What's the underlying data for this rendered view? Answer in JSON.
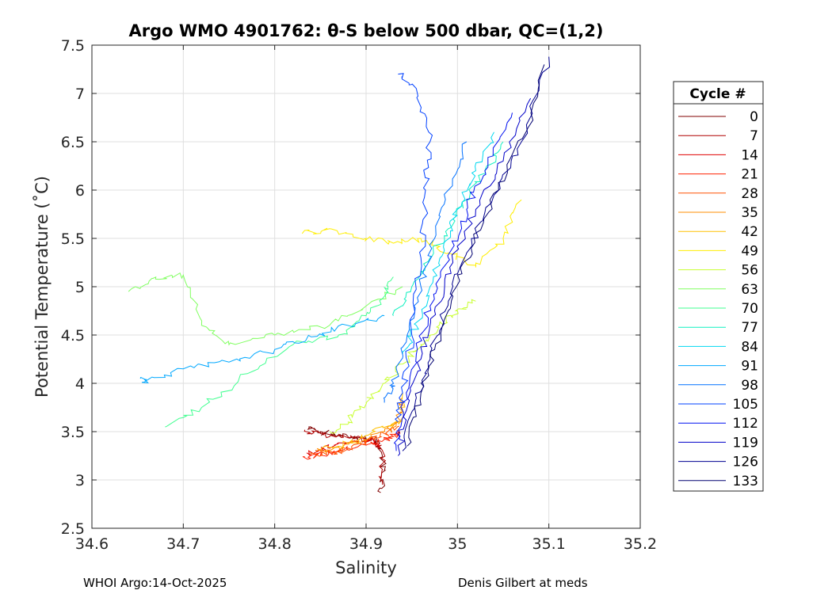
{
  "chart_data": {
    "type": "line",
    "title": "Argo WMO 4901762: θ-S below 500 dbar,  QC=(1,2)",
    "xlabel": "Salinity",
    "ylabel": "Potential Temperature (˚C)",
    "xlim": [
      34.6,
      35.2
    ],
    "ylim": [
      2.5,
      7.5
    ],
    "xticks": [
      34.6,
      34.7,
      34.8,
      34.9,
      35,
      35.1,
      35.2
    ],
    "xtick_labels": [
      "34.6",
      "34.7",
      "34.8",
      "34.9",
      "35",
      "35.1",
      "35.2"
    ],
    "yticks": [
      2.5,
      3,
      3.5,
      4,
      4.5,
      5,
      5.5,
      6,
      6.5,
      7,
      7.5
    ],
    "ytick_labels": [
      "2.5",
      "3",
      "3.5",
      "4",
      "4.5",
      "5",
      "5.5",
      "6",
      "6.5",
      "7",
      "7.5"
    ],
    "grid": true,
    "legend": {
      "title": "Cycle #",
      "placement": "right outside",
      "entries": [
        {
          "label": "0",
          "color": "#800000"
        },
        {
          "label": "7",
          "color": "#b00000"
        },
        {
          "label": "14",
          "color": "#e00000"
        },
        {
          "label": "21",
          "color": "#ff2000"
        },
        {
          "label": "28",
          "color": "#ff5000"
        },
        {
          "label": "35",
          "color": "#ff8c00"
        },
        {
          "label": "42",
          "color": "#ffc000"
        },
        {
          "label": "49",
          "color": "#ffee00"
        },
        {
          "label": "56",
          "color": "#c8ff30"
        },
        {
          "label": "63",
          "color": "#80ff60"
        },
        {
          "label": "70",
          "color": "#40ff90"
        },
        {
          "label": "77",
          "color": "#10f0c0"
        },
        {
          "label": "84",
          "color": "#00d8f0"
        },
        {
          "label": "91",
          "color": "#00a8ff"
        },
        {
          "label": "98",
          "color": "#0070ff"
        },
        {
          "label": "105",
          "color": "#0040ff"
        },
        {
          "label": "112",
          "color": "#0010f0"
        },
        {
          "label": "119",
          "color": "#0000c8"
        },
        {
          "label": "126",
          "color": "#000090"
        },
        {
          "label": "133",
          "color": "#000070"
        }
      ]
    },
    "series": [
      {
        "name": "0",
        "color": "#800000",
        "x": [
          34.837,
          34.85,
          34.87,
          34.89,
          34.905,
          34.915,
          34.92,
          34.916
        ],
        "y": [
          3.55,
          3.5,
          3.46,
          3.44,
          3.43,
          3.38,
          3.1,
          2.87
        ]
      },
      {
        "name": "7",
        "color": "#b00000",
        "x": [
          34.833,
          34.85,
          34.875,
          34.895,
          34.91,
          34.918,
          34.918
        ],
        "y": [
          3.52,
          3.48,
          3.44,
          3.42,
          3.4,
          3.3,
          2.95
        ]
      },
      {
        "name": "14",
        "color": "#e00000",
        "x": [
          34.835,
          34.848,
          34.865,
          34.89,
          34.905,
          34.915
        ],
        "y": [
          3.28,
          3.3,
          3.36,
          3.4,
          3.42,
          3.35
        ]
      },
      {
        "name": "21",
        "color": "#ff2000",
        "x": [
          34.833,
          34.85,
          34.87,
          34.9,
          34.92,
          34.93,
          34.935
        ],
        "y": [
          3.24,
          3.26,
          3.3,
          3.36,
          3.42,
          3.45,
          3.5
        ]
      },
      {
        "name": "28",
        "color": "#ff5000",
        "x": [
          34.84,
          34.86,
          34.88,
          34.9,
          34.92,
          34.935
        ],
        "y": [
          3.26,
          3.28,
          3.32,
          3.4,
          3.48,
          3.55
        ]
      },
      {
        "name": "35",
        "color": "#ff8c00",
        "x": [
          34.845,
          34.87,
          34.895,
          34.92,
          34.935,
          34.94
        ],
        "y": [
          3.3,
          3.34,
          3.4,
          3.5,
          3.6,
          3.85
        ]
      },
      {
        "name": "42",
        "color": "#ffc000",
        "x": [
          34.85,
          34.88,
          34.9,
          34.925,
          34.938,
          34.94
        ],
        "y": [
          3.32,
          3.38,
          3.46,
          3.56,
          3.62,
          3.9
        ]
      },
      {
        "name": "49",
        "color": "#ffee00",
        "x": [
          34.83,
          34.86,
          34.9,
          34.93,
          34.96,
          34.99,
          35.02,
          35.05,
          35.07
        ],
        "y": [
          5.55,
          5.6,
          5.5,
          5.45,
          5.5,
          5.35,
          5.2,
          5.5,
          5.9
        ]
      },
      {
        "name": "56",
        "color": "#c8ff30",
        "x": [
          34.86,
          34.88,
          34.9,
          34.92,
          34.94,
          34.96,
          34.98,
          35.0,
          35.02
        ],
        "y": [
          3.5,
          3.6,
          3.8,
          4.0,
          4.2,
          4.4,
          4.6,
          4.75,
          4.85
        ]
      },
      {
        "name": "63",
        "color": "#80ff60",
        "x": [
          34.64,
          34.67,
          34.7,
          34.72,
          34.75,
          34.8,
          34.86,
          34.9,
          34.94
        ],
        "y": [
          4.95,
          5.1,
          5.12,
          4.6,
          4.4,
          4.5,
          4.6,
          4.8,
          5.0
        ]
      },
      {
        "name": "70",
        "color": "#40ff90",
        "x": [
          34.68,
          34.72,
          34.77,
          34.82,
          34.87,
          34.9,
          34.92,
          34.93
        ],
        "y": [
          3.55,
          3.75,
          4.1,
          4.4,
          4.5,
          4.7,
          4.9,
          5.1
        ]
      },
      {
        "name": "77",
        "color": "#10f0c0",
        "x": [
          34.93,
          34.95,
          34.97,
          34.99,
          35.01,
          35.03,
          35.05
        ],
        "y": [
          4.7,
          5.0,
          5.3,
          5.6,
          5.9,
          6.2,
          6.5
        ]
      },
      {
        "name": "84",
        "color": "#00d8f0",
        "x": [
          34.94,
          34.955,
          34.97,
          34.985,
          35.0,
          35.02,
          35.04
        ],
        "y": [
          4.3,
          4.6,
          5.0,
          5.4,
          5.8,
          6.2,
          6.6
        ]
      },
      {
        "name": "91",
        "color": "#00a8ff",
        "x": [
          34.653,
          34.66,
          34.7,
          34.75,
          34.8,
          34.84,
          34.88,
          34.92
        ],
        "y": [
          4.05,
          4.03,
          4.15,
          4.22,
          4.35,
          4.48,
          4.6,
          4.7
        ]
      },
      {
        "name": "98",
        "color": "#0070ff",
        "x": [
          34.92,
          34.93,
          34.945,
          34.96,
          34.975,
          34.99,
          35.01
        ],
        "y": [
          3.8,
          4.0,
          4.5,
          5.0,
          5.5,
          6.0,
          6.5
        ]
      },
      {
        "name": "105",
        "color": "#0040ff",
        "x": [
          34.935,
          34.94,
          34.95,
          34.96,
          34.965,
          34.97,
          34.955,
          34.935
        ],
        "y": [
          3.6,
          3.9,
          4.5,
          5.3,
          6.0,
          6.5,
          7.05,
          7.2
        ]
      },
      {
        "name": "112",
        "color": "#0010f0",
        "x": [
          34.933,
          34.94,
          34.955,
          34.97,
          34.99,
          35.01,
          35.03,
          35.06
        ],
        "y": [
          3.3,
          3.8,
          4.3,
          4.8,
          5.3,
          5.8,
          6.2,
          6.8
        ]
      },
      {
        "name": "119",
        "color": "#0000c8",
        "x": [
          34.935,
          34.945,
          34.96,
          34.975,
          34.995,
          35.02,
          35.05,
          35.08
        ],
        "y": [
          3.25,
          3.75,
          4.25,
          4.75,
          5.25,
          5.8,
          6.3,
          6.95
        ]
      },
      {
        "name": "126",
        "color": "#000090",
        "x": [
          34.94,
          34.955,
          34.97,
          34.99,
          35.01,
          35.04,
          35.07,
          35.1
        ],
        "y": [
          3.3,
          3.85,
          4.3,
          4.85,
          5.35,
          5.95,
          6.5,
          7.38
        ]
      },
      {
        "name": "133",
        "color": "#000070",
        "x": [
          34.945,
          34.96,
          34.975,
          34.995,
          35.015,
          35.045,
          35.075,
          35.095
        ],
        "y": [
          3.35,
          3.9,
          4.35,
          4.9,
          5.4,
          6.0,
          6.6,
          7.3
        ]
      }
    ]
  },
  "footer": {
    "left": "WHOI Argo:14-Oct-2025",
    "right": "Denis Gilbert at meds"
  }
}
